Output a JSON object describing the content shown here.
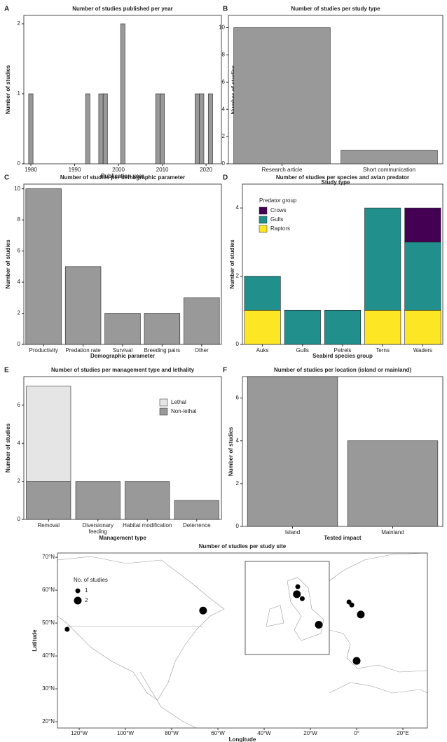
{
  "chart_data": [
    {
      "type": "bar",
      "panel": "A",
      "title": "Number of studies published per year",
      "x": [
        1980,
        1993,
        1996,
        1997,
        2001,
        2009,
        2010,
        2018,
        2019,
        2021
      ],
      "values": [
        1,
        1,
        1,
        1,
        2,
        1,
        1,
        1,
        1,
        1
      ],
      "color": "#999999",
      "xlim": [
        1978.4,
        2023.5
      ],
      "xticks": [
        1980,
        1990,
        2000,
        2010,
        2020
      ],
      "ylim": [
        0,
        2.12
      ],
      "yticks": [
        0,
        1,
        2
      ],
      "x_label": "Publication year",
      "y_label": "Number of studies"
    },
    {
      "type": "bar",
      "panel": "B",
      "title": "Number of studies per study type",
      "categories": [
        "Research article",
        "Short communication"
      ],
      "values": [
        10,
        1
      ],
      "color": "#999999",
      "ylim": [
        0,
        10.9
      ],
      "yticks": [
        0,
        2,
        4,
        6,
        8,
        10
      ],
      "x_label": "Study type",
      "y_label": "Number of studies"
    },
    {
      "type": "bar",
      "panel": "C",
      "title": "Number of studies per demographic parameter",
      "categories": [
        "Productivity",
        "Predation rate",
        "Survival",
        "Breeding pairs",
        "Other"
      ],
      "values": [
        10,
        5,
        2,
        2,
        3
      ],
      "color": "#999999",
      "ylim": [
        0,
        10.3
      ],
      "yticks": [
        0,
        2,
        4,
        6,
        8,
        10
      ],
      "x_label": "Demographic parameter",
      "y_label": "Number of studies"
    },
    {
      "type": "stacked_bar",
      "panel": "D",
      "title": "Number of studies per species and avian predator",
      "categories": [
        "Auks",
        "Gulls",
        "Petrels",
        "Terns",
        "Waders"
      ],
      "series": [
        {
          "name": "Raptors",
          "color": "#fde725",
          "values": [
            1,
            0,
            0,
            1,
            1
          ]
        },
        {
          "name": "Gulls",
          "color": "#21908d",
          "values": [
            1,
            1,
            1,
            3,
            2
          ]
        },
        {
          "name": "Crows",
          "color": "#440154",
          "values": [
            0,
            0,
            0,
            0,
            1
          ]
        }
      ],
      "legend_title": "Predator group",
      "ylim": [
        0,
        4.7
      ],
      "yticks": [
        0,
        2,
        4
      ],
      "x_label": "Seabird species group",
      "y_label": "Number of studies"
    },
    {
      "type": "stacked_bar",
      "panel": "E",
      "title": "Number of studies per management type and lethality",
      "categories": [
        "Removal",
        "Diversionary feeding",
        "Habitat modification",
        "Deterrence"
      ],
      "series": [
        {
          "name": "Non-lethal",
          "color": "#999999",
          "values": [
            2,
            2,
            2,
            1
          ]
        },
        {
          "name": "Lethal",
          "color": "#e5e5e5",
          "values": [
            5,
            0,
            0,
            0
          ]
        }
      ],
      "ylim": [
        0,
        7.5
      ],
      "yticks": [
        0,
        2,
        4,
        6
      ],
      "x_label": "Management type",
      "y_label": "Number of studies"
    },
    {
      "type": "bar",
      "panel": "F",
      "title": "Number of studies per location (island or mainland)",
      "categories": [
        "Island",
        "Mainland"
      ],
      "values": [
        7,
        4
      ],
      "color": "#999999",
      "ylim": [
        0,
        7.0
      ],
      "yticks": [
        0,
        2,
        4,
        6
      ],
      "x_label": "Tested impact",
      "y_label": "Number of studies"
    },
    {
      "type": "map",
      "title": "Number of studies per study site",
      "x_label": "Longitude",
      "y_label": "Latitude",
      "xlim": [
        -129.4,
        30.6
      ],
      "xticks": [
        {
          "value": -120,
          "label": "120°W"
        },
        {
          "value": -100,
          "label": "100°W"
        },
        {
          "value": -80,
          "label": "80°W"
        },
        {
          "value": -60,
          "label": "60°W"
        },
        {
          "value": -40,
          "label": "40°W"
        },
        {
          "value": -20,
          "label": "20°W"
        },
        {
          "value": 0,
          "label": "0°"
        },
        {
          "value": 20,
          "label": "20°E"
        }
      ],
      "ylim": [
        18.1,
        71.3
      ],
      "yticks": [
        {
          "value": 20,
          "label": "20°N"
        },
        {
          "value": 30,
          "label": "30°N"
        },
        {
          "value": 40,
          "label": "40°N"
        },
        {
          "value": 50,
          "label": "50°N"
        },
        {
          "value": 60,
          "label": "60°N"
        },
        {
          "value": 70,
          "label": "70°N"
        }
      ],
      "legend_title": "No. of studies",
      "sizes": [
        1,
        2
      ],
      "x": [
        -125.2,
        -66.4,
        -3.3,
        -2.1,
        1.8,
        0
      ],
      "y": [
        48.1,
        53.8,
        56.4,
        55.5,
        52.6,
        38.5
      ],
      "size": [
        1,
        2,
        1,
        1,
        2,
        2
      ],
      "inset": {
        "x": [
          -2.25,
          -2.4,
          -1.5,
          1.25
        ],
        "y": [
          58.1,
          57.1,
          56.5,
          53.0
        ],
        "size": [
          1,
          2,
          1,
          2
        ]
      }
    }
  ]
}
